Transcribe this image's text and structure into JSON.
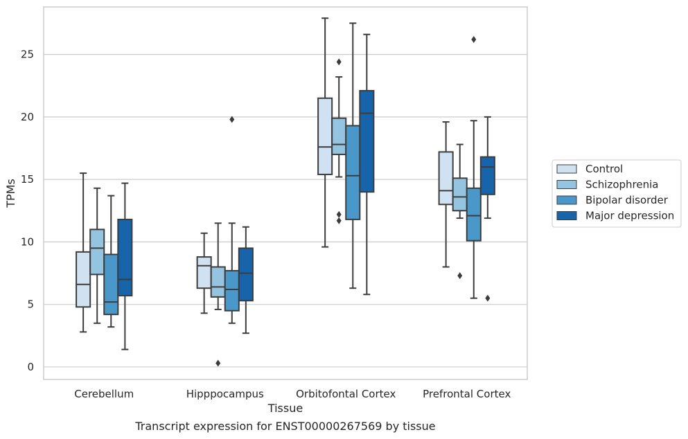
{
  "chart_data": {
    "type": "boxplot",
    "title": "",
    "caption": "Transcript expression for ENST00000267569 by tissue",
    "xlabel": "Tissue",
    "ylabel": "TPMs",
    "ylim": [
      -1,
      28.8
    ],
    "yticks": [
      0,
      5,
      10,
      15,
      20,
      25
    ],
    "grid": "horizontal",
    "legend_position": "right",
    "categories": [
      "Cerebellum",
      "Hipppocampus",
      "Orbitofontal Cortex",
      "Prefrontal Cortex"
    ],
    "series": [
      {
        "name": "Control",
        "color": "#d0e1f2",
        "boxes": [
          {
            "whisker_low": 2.8,
            "q1": 4.8,
            "median": 6.6,
            "q3": 9.2,
            "whisker_high": 15.5,
            "outliers": []
          },
          {
            "whisker_low": 4.3,
            "q1": 6.3,
            "median": 8.1,
            "q3": 8.8,
            "whisker_high": 10.7,
            "outliers": []
          },
          {
            "whisker_low": 9.6,
            "q1": 15.4,
            "median": 17.6,
            "q3": 21.5,
            "whisker_high": 27.9,
            "outliers": []
          },
          {
            "whisker_low": 8.0,
            "q1": 13.0,
            "median": 14.1,
            "q3": 17.2,
            "whisker_high": 19.6,
            "outliers": []
          }
        ]
      },
      {
        "name": "Schizophrenia",
        "color": "#94c4df",
        "boxes": [
          {
            "whisker_low": 3.5,
            "q1": 7.4,
            "median": 9.5,
            "q3": 11.0,
            "whisker_high": 14.3,
            "outliers": []
          },
          {
            "whisker_low": 4.6,
            "q1": 5.6,
            "median": 6.4,
            "q3": 8.0,
            "whisker_high": 11.5,
            "outliers": [
              0.3
            ]
          },
          {
            "whisker_low": 15.2,
            "q1": 17.0,
            "median": 17.8,
            "q3": 19.9,
            "whisker_high": 23.2,
            "outliers": [
              24.4,
              12.2,
              11.7
            ]
          },
          {
            "whisker_low": 11.9,
            "q1": 12.5,
            "median": 13.6,
            "q3": 15.1,
            "whisker_high": 17.8,
            "outliers": [
              7.3
            ]
          }
        ]
      },
      {
        "name": "Bipolar disorder",
        "color": "#4a98c9",
        "boxes": [
          {
            "whisker_low": 3.2,
            "q1": 4.2,
            "median": 5.2,
            "q3": 9.0,
            "whisker_high": 13.7,
            "outliers": []
          },
          {
            "whisker_low": 3.5,
            "q1": 4.5,
            "median": 6.2,
            "q3": 7.7,
            "whisker_high": 11.5,
            "outliers": [
              19.8
            ]
          },
          {
            "whisker_low": 6.3,
            "q1": 11.8,
            "median": 15.3,
            "q3": 19.3,
            "whisker_high": 27.5,
            "outliers": []
          },
          {
            "whisker_low": 5.5,
            "q1": 10.1,
            "median": 12.1,
            "q3": 14.3,
            "whisker_high": 19.7,
            "outliers": [
              26.2
            ]
          }
        ]
      },
      {
        "name": "Major depression",
        "color": "#1764ab",
        "boxes": [
          {
            "whisker_low": 1.4,
            "q1": 5.7,
            "median": 7.0,
            "q3": 11.8,
            "whisker_high": 14.7,
            "outliers": []
          },
          {
            "whisker_low": 2.7,
            "q1": 5.3,
            "median": 7.5,
            "q3": 9.5,
            "whisker_high": 11.2,
            "outliers": []
          },
          {
            "whisker_low": 5.8,
            "q1": 14.0,
            "median": 20.3,
            "q3": 22.1,
            "whisker_high": 26.6,
            "outliers": []
          },
          {
            "whisker_low": 11.9,
            "q1": 13.8,
            "median": 16.0,
            "q3": 16.8,
            "whisker_high": 20.0,
            "outliers": [
              5.5
            ]
          }
        ]
      }
    ]
  }
}
